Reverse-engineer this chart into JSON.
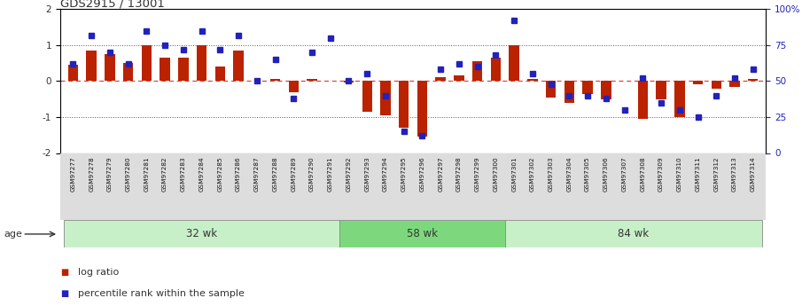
{
  "title": "GDS2915 / 13001",
  "samples": [
    "GSM97277",
    "GSM97278",
    "GSM97279",
    "GSM97280",
    "GSM97281",
    "GSM97282",
    "GSM97283",
    "GSM97284",
    "GSM97285",
    "GSM97286",
    "GSM97287",
    "GSM97288",
    "GSM97289",
    "GSM97290",
    "GSM97291",
    "GSM97292",
    "GSM97293",
    "GSM97294",
    "GSM97295",
    "GSM97296",
    "GSM97297",
    "GSM97298",
    "GSM97299",
    "GSM97300",
    "GSM97301",
    "GSM97302",
    "GSM97303",
    "GSM97304",
    "GSM97305",
    "GSM97306",
    "GSM97307",
    "GSM97308",
    "GSM97309",
    "GSM97310",
    "GSM97311",
    "GSM97312",
    "GSM97313",
    "GSM97314"
  ],
  "log_ratio": [
    0.45,
    0.85,
    0.75,
    0.5,
    1.0,
    0.65,
    0.65,
    1.0,
    0.4,
    0.85,
    0.0,
    0.05,
    -0.3,
    0.05,
    0.02,
    -0.05,
    -0.85,
    -0.95,
    -1.3,
    -1.55,
    0.1,
    0.15,
    0.55,
    0.65,
    1.0,
    0.05,
    -0.45,
    -0.6,
    -0.35,
    -0.5,
    0.0,
    -1.05,
    -0.5,
    -1.0,
    -0.1,
    -0.2,
    -0.15,
    0.05
  ],
  "percentile": [
    62,
    82,
    70,
    62,
    85,
    75,
    72,
    85,
    72,
    82,
    50,
    65,
    38,
    70,
    80,
    50,
    55,
    40,
    15,
    12,
    58,
    62,
    60,
    68,
    92,
    55,
    48,
    40,
    40,
    38,
    30,
    52,
    35,
    30,
    25,
    40,
    52,
    58
  ],
  "group_labels": [
    "32 wk",
    "58 wk",
    "84 wk"
  ],
  "group_ranges": [
    [
      0,
      15
    ],
    [
      15,
      24
    ],
    [
      24,
      38
    ]
  ],
  "group_colors": [
    "#c8f0c8",
    "#7dd87d",
    "#c8f0c8"
  ],
  "bar_color": "#bb2200",
  "dot_color": "#2222bb",
  "zero_line_color": "#dd4444",
  "dotted_line_color": "#555555",
  "right_axis_color": "#2222bb",
  "bg_color": "#ffffff",
  "xticklabel_bg": "#dddddd",
  "ylim": [
    -2,
    2
  ],
  "yticks_left": [
    -2,
    -1,
    0,
    1,
    2
  ],
  "yticks_right": [
    0,
    25,
    50,
    75,
    100
  ],
  "right_tick_labels": [
    "0",
    "25",
    "50",
    "75",
    "100%"
  ],
  "dotted_hlines": [
    -1,
    1
  ],
  "legend_items": [
    "log ratio",
    "percentile rank within the sample"
  ],
  "age_label": "age"
}
